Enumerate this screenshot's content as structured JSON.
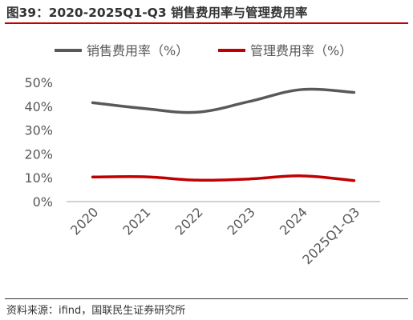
{
  "figure": {
    "title": "图39：2020-2025Q1-Q3 销售费用率与管理费用率",
    "source": "资料来源：ifind，国联民生证券研究所"
  },
  "chart_data": {
    "type": "line",
    "title": "图39：2020-2025Q1-Q3 销售费用率与管理费用率",
    "categories": [
      "2020",
      "2021",
      "2022",
      "2023",
      "2024",
      "2025Q1-Q3"
    ],
    "series": [
      {
        "name": "销售费用率（%）",
        "color": "#595959",
        "values": [
          41.5,
          39,
          37.5,
          42,
          47,
          45.8
        ]
      },
      {
        "name": "管理费用率（%）",
        "color": "#c00000",
        "values": [
          10.3,
          10.4,
          9.0,
          9.5,
          10.8,
          8.8
        ]
      }
    ],
    "ylim": [
      0,
      50
    ],
    "yticks": [
      0,
      10,
      20,
      30,
      40,
      50
    ],
    "ytick_labels": [
      "0%",
      "10%",
      "20%",
      "30%",
      "40%",
      "50%"
    ],
    "grid": false,
    "legend_position": "top"
  }
}
